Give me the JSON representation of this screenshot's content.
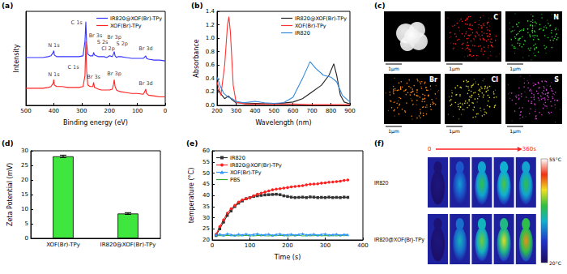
{
  "chart_data": [
    {
      "panel": "(a)",
      "type": "line",
      "x_label": "Binding energy (eV)",
      "y_label": "Intensity",
      "xlim": [
        500,
        0
      ],
      "xticks": [
        500,
        400,
        300,
        200,
        100,
        0
      ],
      "ylim": [
        0,
        110
      ],
      "tick_labels": "x",
      "grid": false,
      "legend": "upper right",
      "x": [
        500,
        480,
        460,
        440,
        420,
        410,
        402,
        400,
        398,
        390,
        370,
        350,
        330,
        310,
        295,
        288,
        285,
        282,
        278,
        270,
        260,
        257,
        254,
        240,
        230,
        220,
        210,
        200,
        190,
        186,
        183,
        180,
        175,
        170,
        160,
        140,
        120,
        100,
        80,
        75,
        70,
        67,
        60,
        40,
        20,
        0
      ],
      "series": [
        {
          "name": "IR820@XOF(Br)-TPy",
          "color": "#3333ff",
          "values": [
            56,
            56,
            56,
            56,
            57,
            58,
            62,
            64,
            59,
            57,
            57,
            57,
            57,
            57,
            58,
            75,
            98,
            72,
            60,
            58,
            58,
            62,
            59,
            57,
            57,
            57,
            56,
            58,
            57,
            60,
            63,
            58,
            56,
            57,
            57,
            56,
            55,
            55,
            55,
            56,
            58,
            55,
            54,
            53,
            53,
            52
          ],
          "annotations": [
            {
              "text": "N 1s",
              "x": 400,
              "y": 70
            },
            {
              "text": "C 1s",
              "x": 318,
              "y": 97
            },
            {
              "text": "Br 3s",
              "x": 250,
              "y": 82
            },
            {
              "text": "S 2s",
              "x": 225,
              "y": 74
            },
            {
              "text": "Cl 2p",
              "x": 205,
              "y": 66
            },
            {
              "text": "Br 3p",
              "x": 183,
              "y": 80
            },
            {
              "text": "S 2p",
              "x": 155,
              "y": 72
            },
            {
              "text": "Br 3d",
              "x": 70,
              "y": 66
            }
          ]
        },
        {
          "name": "XOF(Br)-TPy",
          "color": "#ff2222",
          "values": [
            20,
            20,
            20,
            20,
            21,
            22,
            26,
            30,
            24,
            22,
            22,
            21,
            21,
            21,
            22,
            35,
            75,
            40,
            24,
            22,
            22,
            27,
            21,
            19,
            18,
            18,
            18,
            18,
            19,
            24,
            30,
            22,
            18,
            17,
            16,
            15,
            14,
            14,
            13,
            15,
            19,
            14,
            12,
            11,
            10,
            10
          ],
          "annotations": [
            {
              "text": "N 1s",
              "x": 400,
              "y": 36
            },
            {
              "text": "C 1s",
              "x": 330,
              "y": 45
            },
            {
              "text": "Br 3s",
              "x": 257,
              "y": 33
            },
            {
              "text": "Br 3p",
              "x": 183,
              "y": 37
            },
            {
              "text": "Br 3d",
              "x": 70,
              "y": 26
            }
          ]
        }
      ]
    },
    {
      "panel": "(b)",
      "type": "line",
      "x_label": "Wavelength (nm)",
      "y_label": "Absorbance",
      "xlim": [
        200,
        900
      ],
      "xticks": [
        200,
        300,
        400,
        500,
        600,
        700,
        800,
        900
      ],
      "ylim": [
        0,
        1.4
      ],
      "yticks": [
        {
          "value": 0,
          "label": "0.0"
        },
        0.2,
        0.4,
        0.6,
        0.8,
        {
          "value": 1,
          "label": "1.0"
        },
        1.2,
        1.4
      ],
      "grid": false,
      "legend": "upper right",
      "series": [
        {
          "name": "IR820@XOF(Br)-TPy",
          "color": "#222222",
          "x": [
            200,
            220,
            240,
            260,
            280,
            300,
            400,
            500,
            600,
            650,
            700,
            750,
            790,
            815,
            830,
            850,
            870,
            900
          ],
          "values": [
            0.25,
            0.17,
            0.1,
            0.14,
            0.08,
            0.04,
            0.03,
            0.02,
            0.05,
            0.1,
            0.2,
            0.3,
            0.45,
            0.62,
            0.45,
            0.15,
            0.05,
            0.02
          ]
        },
        {
          "name": "XOF(Br)-TPy",
          "color": "#ff3333",
          "x": [
            200,
            220,
            240,
            255,
            262,
            270,
            285,
            300,
            350,
            400,
            500,
            600,
            700,
            800,
            900
          ],
          "values": [
            0.35,
            0.15,
            0.6,
            1.2,
            1.32,
            1.1,
            0.3,
            0.05,
            0.02,
            0.02,
            0.02,
            0.02,
            0.01,
            0.01,
            0.01
          ]
        },
        {
          "name": "IR820",
          "color": "#3388dd",
          "x": [
            200,
            215,
            235,
            260,
            280,
            300,
            340,
            400,
            450,
            500,
            550,
            600,
            650,
            690,
            720,
            760,
            800,
            830,
            860,
            900
          ],
          "values": [
            0.42,
            0.3,
            0.18,
            0.12,
            0.1,
            0.06,
            0.04,
            0.06,
            0.04,
            0.03,
            0.04,
            0.12,
            0.4,
            0.65,
            0.55,
            0.45,
            0.42,
            0.35,
            0.15,
            0.05
          ]
        }
      ]
    },
    {
      "panel": "(c)",
      "type": "image_grid",
      "tiles": [
        {
          "element": null,
          "color": "#e6e6e6",
          "scale_bar": "1μm"
        },
        {
          "element": "C",
          "color": "#ff2020",
          "scale_bar": "1μm"
        },
        {
          "element": "N",
          "color": "#30e030",
          "scale_bar": "1μm"
        },
        {
          "element": "Br",
          "color": "#ff8c1a",
          "scale_bar": "1μm"
        },
        {
          "element": "Cl",
          "color": "#e8e030",
          "scale_bar": "1μm"
        },
        {
          "element": "S",
          "color": "#d040d0",
          "scale_bar": "1μm"
        }
      ]
    },
    {
      "panel": "(d)",
      "type": "bar",
      "y_label": "Zeta Potential (mV)",
      "categories": [
        "XOF(Br)-TPy",
        "IR820@XOF(Br)-TPy"
      ],
      "values": [
        28.1,
        8.5
      ],
      "errors": [
        0.4,
        0.3
      ],
      "color": "#3ee63e",
      "ylim": [
        0,
        30
      ],
      "yticks": [
        0,
        5,
        10,
        15,
        20,
        25,
        30
      ],
      "grid": false
    },
    {
      "panel": "(e)",
      "type": "line",
      "x_label": "Time (s)",
      "y_label": "temperature (°C)",
      "xlim": [
        0,
        400
      ],
      "xticks": [
        0,
        100,
        200,
        300,
        400
      ],
      "ylim": [
        20,
        60
      ],
      "yticks": [
        20,
        25,
        30,
        35,
        40,
        45,
        50,
        55,
        60
      ],
      "grid": false,
      "legend": "upper left",
      "x": [
        10,
        20,
        30,
        40,
        50,
        60,
        70,
        80,
        90,
        100,
        110,
        120,
        130,
        140,
        150,
        160,
        170,
        180,
        190,
        200,
        210,
        220,
        230,
        240,
        250,
        260,
        270,
        280,
        290,
        300,
        310,
        320,
        330,
        340,
        350,
        360
      ],
      "series": [
        {
          "name": "IR820",
          "color": "#333333",
          "marker": "square",
          "values": [
            22,
            25,
            28,
            31,
            33,
            35,
            36.5,
            37.5,
            38.5,
            39,
            39.5,
            39.8,
            40,
            40.2,
            40.3,
            40.4,
            40.5,
            40.3,
            39.8,
            39.5,
            39.2,
            39,
            39.1,
            39.2,
            39,
            39.3,
            39.2,
            39,
            39.1,
            39,
            39.2,
            39,
            39.1,
            39,
            39.2,
            39.1
          ]
        },
        {
          "name": "IR820@XOF(Br)-TPy",
          "color": "#ff2020",
          "marker": "circle",
          "values": [
            22.5,
            26,
            29,
            32,
            34,
            35.5,
            37,
            38,
            38.5,
            39,
            39.8,
            40.5,
            41,
            41.5,
            42,
            42.5,
            42.8,
            43,
            43.3,
            43.5,
            43.8,
            44,
            44.2,
            44.4,
            44.7,
            45,
            45.1,
            45.2,
            45.5,
            45.6,
            45.9,
            46,
            46.2,
            46.4,
            46.7,
            46.9
          ]
        },
        {
          "name": "XOF(Br)-TPy",
          "color": "#3399ff",
          "marker": "triangle",
          "values": [
            22.3,
            22.6,
            22.2,
            22.8,
            22.4,
            22.1,
            22.6,
            22.3,
            22.7,
            22.2,
            22.5,
            22.8,
            22.3,
            22.4,
            22.6,
            22.1,
            22.5,
            22.7,
            22.3,
            22.4,
            22.6,
            22.2,
            22.5,
            22.8,
            22.3,
            22.4,
            22.6,
            22.2,
            22.5,
            22.7,
            22.3,
            22.4,
            22.6,
            22.2,
            22.5,
            22.4
          ]
        },
        {
          "name": "PBS",
          "color": "#33aa33",
          "marker": "none",
          "values": [
            21.9,
            22.0,
            21.8,
            22.1,
            21.9,
            22.0,
            21.8,
            22.0,
            22.1,
            21.9,
            21.8,
            22.0,
            22.1,
            21.9,
            21.8,
            22.0,
            21.9,
            22.1,
            22.0,
            21.8,
            21.9,
            22.0,
            22.1,
            21.8,
            21.9,
            22.0,
            21.9,
            22.1,
            21.8,
            22.0,
            21.9,
            22.0,
            21.8,
            22.1,
            21.9,
            22.0
          ]
        }
      ]
    },
    {
      "panel": "(f)",
      "type": "thermal_images",
      "time_ticks": [
        0,
        {
          "value": 360,
          "label": "360s"
        }
      ],
      "rows": [
        {
          "name": "IR820",
          "max_temperatures": [
            22,
            33,
            39,
            40,
            39
          ]
        },
        {
          "name": "IR820@XOF(Br)-TPy",
          "max_temperatures": [
            22,
            35,
            41,
            44,
            47
          ]
        }
      ],
      "colorbar": {
        "range": [
          20,
          55
        ],
        "ticks": [
          {
            "value": 55,
            "label": "55°C"
          },
          {
            "value": 20,
            "label": "20°C"
          }
        ]
      }
    }
  ]
}
